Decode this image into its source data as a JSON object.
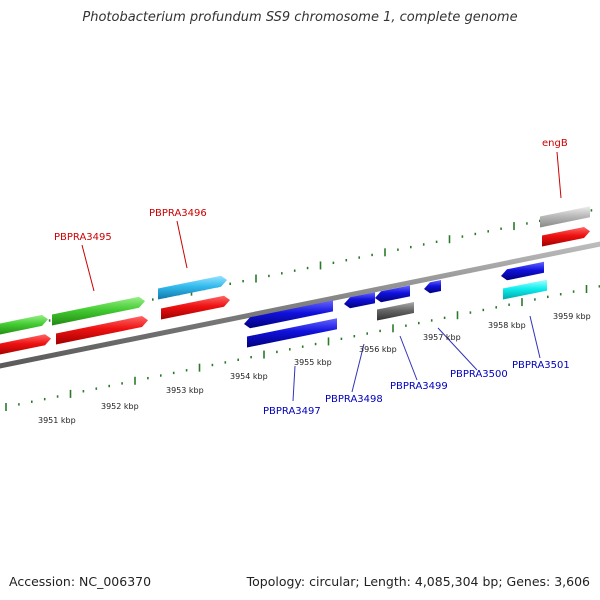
{
  "title": "Photobacterium profundum SS9 chromosome 1, complete genome",
  "footer": {
    "accession": "Accession: NC_006370",
    "summary": "Topology: circular; Length: 4,085,304 bp; Genes: 3,606"
  },
  "colors": {
    "backbone": "#808080",
    "tick": "#2a7a2a",
    "cds_red": "#ee1111",
    "gene_green": "#44cc33",
    "gene_skyblue": "#33bbee",
    "gene_blue": "#1111dd",
    "gene_cyan": "#11eeee",
    "gene_dark_gray": "#666666",
    "gene_light_gray": "#bbbbbb",
    "label_red": "#cc0000",
    "label_blue": "#0000bb"
  },
  "diagram": {
    "scale_labels": [
      "3951 kbp",
      "3952 kbp",
      "3953 kbp",
      "3954 kbp",
      "3955 kbp",
      "3956 kbp",
      "3957 kbp",
      "3958 kbp",
      "3959 kbp"
    ],
    "gene_labels": [
      {
        "text": "PBPRA3495",
        "strand": "forward",
        "color": "#cc0000"
      },
      {
        "text": "PBPRA3496",
        "strand": "forward",
        "color": "#cc0000"
      },
      {
        "text": "engB",
        "strand": "forward",
        "color": "#cc0000"
      },
      {
        "text": "PBPRA3497",
        "strand": "reverse",
        "color": "#0000bb"
      },
      {
        "text": "PBPRA3498",
        "strand": "reverse",
        "color": "#0000bb"
      },
      {
        "text": "PBPRA3499",
        "strand": "reverse",
        "color": "#0000bb"
      },
      {
        "text": "PBPRA3500",
        "strand": "reverse",
        "color": "#0000bb"
      },
      {
        "text": "PBPRA3501",
        "strand": "reverse",
        "color": "#0000bb"
      }
    ]
  }
}
